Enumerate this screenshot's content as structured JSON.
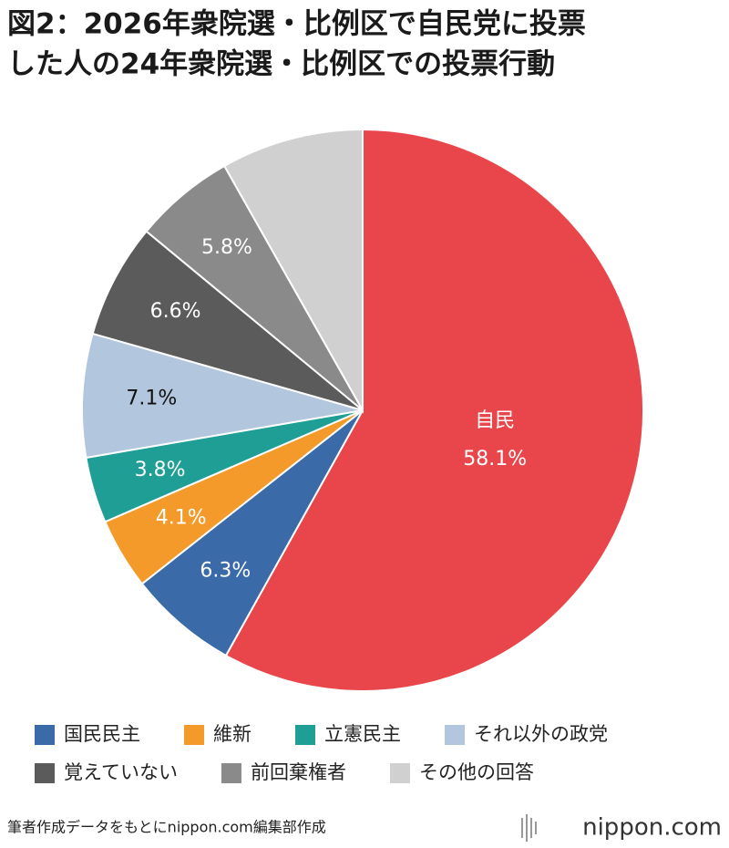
{
  "chart_data": {
    "type": "pie",
    "title": [
      "図2：2026年衆院選・比例区で自民党に投票",
      "した人の24年衆院選・比例区での投票行動"
    ],
    "categories": [
      "自民",
      "国民民主",
      "維新",
      "立憲民主",
      "それ以外の政党",
      "覚えていない",
      "前回棄権者",
      "その他の回答"
    ],
    "values": [
      58.1,
      6.3,
      4.1,
      3.8,
      7.1,
      6.6,
      5.8,
      8.2
    ],
    "value_labels": [
      "58.1%",
      "6.3%",
      "4.1%",
      "3.8%",
      "7.1%",
      "6.6%",
      "5.8%",
      null
    ],
    "colors": [
      "#e8464a",
      "#3a6aa8",
      "#f39a2a",
      "#1f9e96",
      "#b2c6de",
      "#5b5b5b",
      "#8a8a8a",
      "#d0d0d0"
    ],
    "source": "筆者作成データをもとにnippon.com編集部作成",
    "logo": "nippon.com"
  }
}
